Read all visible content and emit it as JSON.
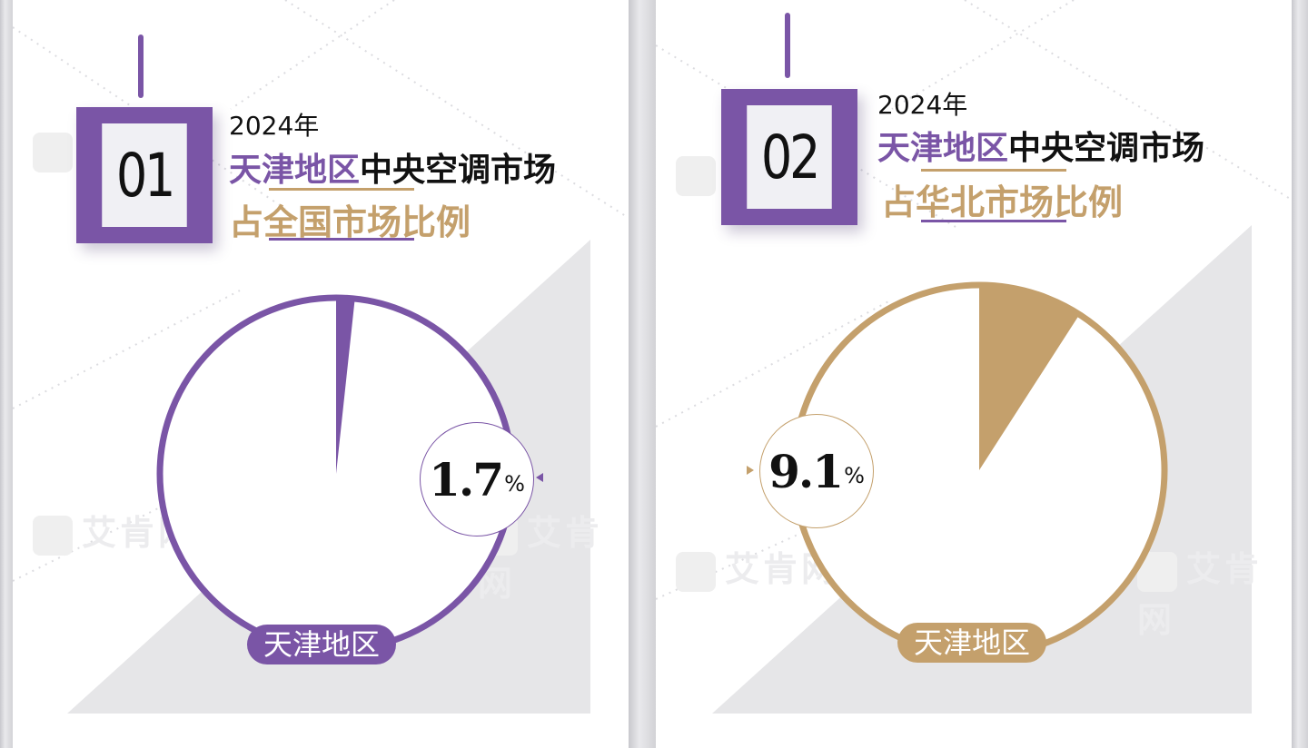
{
  "colors": {
    "purple": "#7a55a6",
    "gold": "#c4a06c",
    "grey_triangle": "#e6e6e8"
  },
  "watermark_text": "艾肯网",
  "panels": [
    {
      "number": "01",
      "year": "2024年",
      "title_highlight": "天津地区",
      "title_rest": "中央空调市场",
      "subtitle": "占全国市场比例",
      "accent": "purple",
      "tag": "天津地区",
      "value": "1.7",
      "unit": "%"
    },
    {
      "number": "02",
      "year": "2024年",
      "title_highlight": "天津地区",
      "title_rest": "中央空调市场",
      "subtitle": "占华北市场比例",
      "accent": "gold",
      "tag": "天津地区",
      "value": "9.1",
      "unit": "%"
    }
  ],
  "chart_data": [
    {
      "type": "pie",
      "title": "2024年天津地区中央空调市场占全国市场比例",
      "slices": [
        {
          "label": "天津地区",
          "value": 1.7
        },
        {
          "label": "",
          "value": 98.3
        }
      ],
      "unit": "%"
    },
    {
      "type": "pie",
      "title": "2024年天津地区中央空调市场占华北市场比例",
      "slices": [
        {
          "label": "天津地区",
          "value": 9.1
        },
        {
          "label": "",
          "value": 90.9
        }
      ],
      "unit": "%"
    }
  ]
}
